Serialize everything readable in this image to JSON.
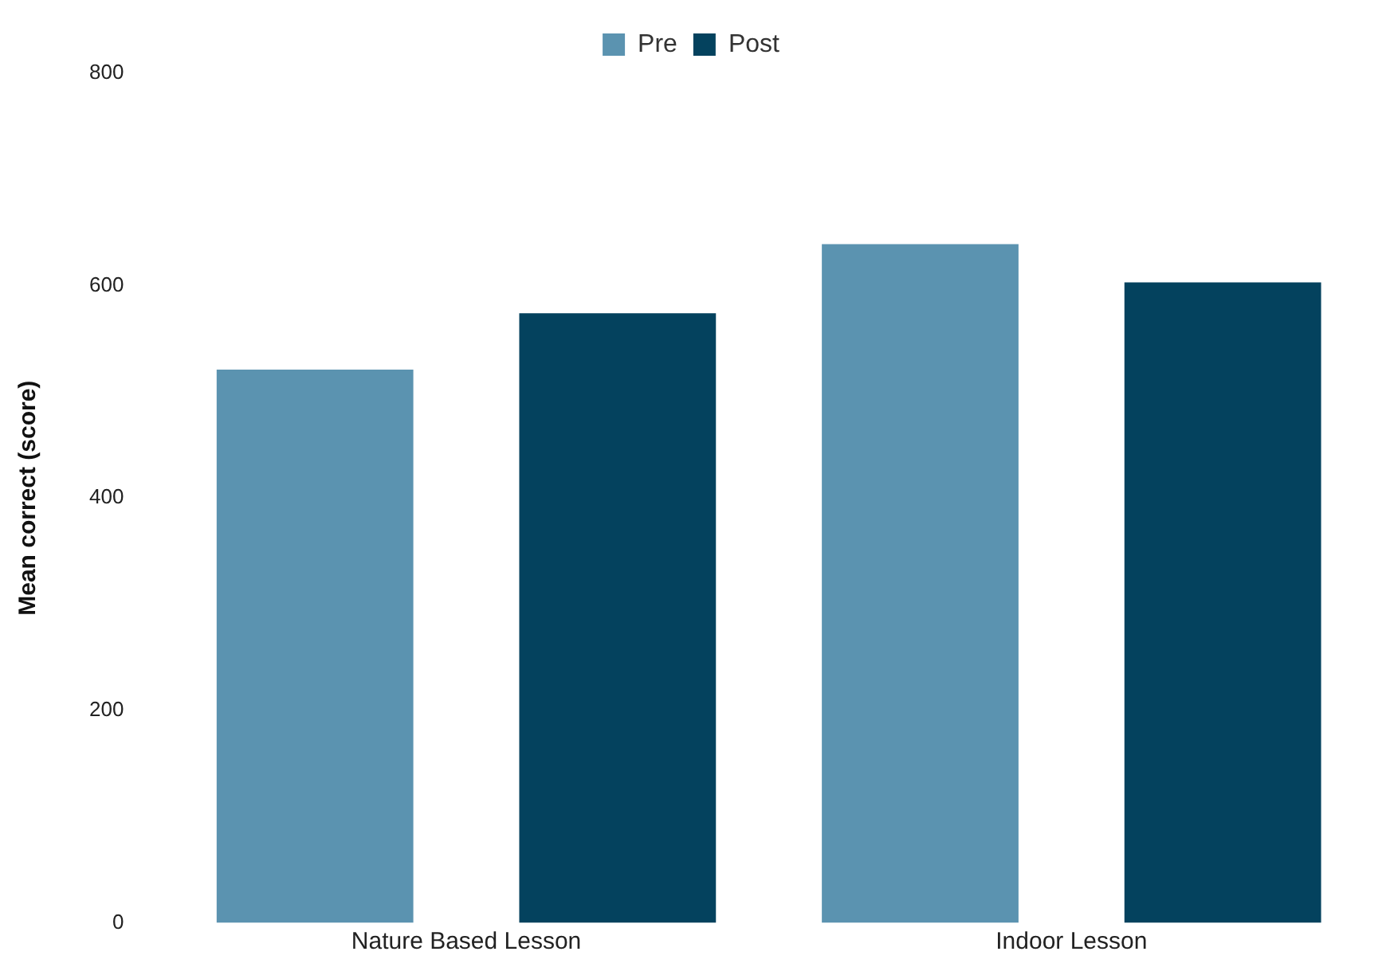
{
  "chart_data": {
    "type": "bar",
    "ylabel": "Mean correct (score)",
    "categories": [
      "Nature Based Lesson",
      "Indoor Lesson"
    ],
    "series": [
      {
        "name": "Pre",
        "color": "#5b93b0",
        "values": [
          521,
          639
        ]
      },
      {
        "name": "Post",
        "color": "#04425e",
        "values": [
          574,
          603
        ]
      }
    ],
    "ylim": [
      0,
      800
    ],
    "yticks": [
      0,
      200,
      400,
      600,
      800
    ],
    "grid": false,
    "legend": "top"
  }
}
